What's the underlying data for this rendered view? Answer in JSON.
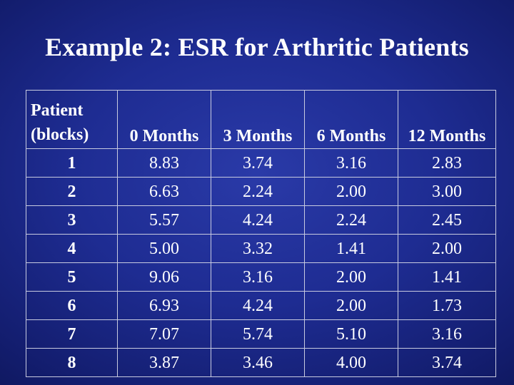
{
  "slide": {
    "title": "Example 2: ESR for Arthritic Patients"
  },
  "table": {
    "patient_header_line1": "Patient",
    "patient_header_line2": "(blocks)",
    "columns": [
      "0 Months",
      "3 Months",
      "6 Months",
      "12 Months"
    ],
    "rows": [
      {
        "patient": "1",
        "values": [
          "8.83",
          "3.74",
          "3.16",
          "2.83"
        ]
      },
      {
        "patient": "2",
        "values": [
          "6.63",
          "2.24",
          "2.00",
          "3.00"
        ]
      },
      {
        "patient": "3",
        "values": [
          "5.57",
          "4.24",
          "2.24",
          "2.45"
        ]
      },
      {
        "patient": "4",
        "values": [
          "5.00",
          "3.32",
          "1.41",
          "2.00"
        ]
      },
      {
        "patient": "5",
        "values": [
          "9.06",
          "3.16",
          "2.00",
          "1.41"
        ]
      },
      {
        "patient": "6",
        "values": [
          "6.93",
          "4.24",
          "2.00",
          "1.73"
        ]
      },
      {
        "patient": "7",
        "values": [
          "7.07",
          "5.74",
          "5.10",
          "3.16"
        ]
      },
      {
        "patient": "8",
        "values": [
          "3.87",
          "3.46",
          "4.00",
          "3.74"
        ]
      }
    ]
  }
}
